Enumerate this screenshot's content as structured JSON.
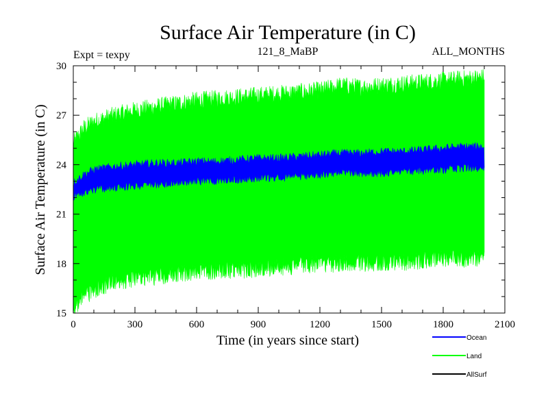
{
  "colors": {
    "ocean": "#0000ff",
    "land": "#00ff00",
    "allsurf": "#000000",
    "axis": "#000000"
  },
  "chart_data": {
    "type": "area",
    "title": "Surface Air Temperature (in C)",
    "expt_label": "Expt = texpy",
    "subtitle": "121_8_MaBP",
    "months_label": "ALL_MONTHS",
    "xlabel": "Time (in years since start)",
    "ylabel": "Surface Air Temperature (in C)",
    "xlim": [
      0,
      2100
    ],
    "ylim": [
      15,
      30
    ],
    "x_ticks": [
      "0",
      "300",
      "600",
      "900",
      "1200",
      "1500",
      "1800",
      "2100"
    ],
    "y_ticks": [
      "15",
      "18",
      "21",
      "24",
      "27",
      "30"
    ],
    "x_end": 2000,
    "series": [
      {
        "name": "Land",
        "color": "#00ff00",
        "x": [
          0,
          50,
          100,
          200,
          300,
          400,
          500,
          600,
          700,
          800,
          900,
          1000,
          1100,
          1200,
          1300,
          1400,
          1500,
          1600,
          1700,
          1800,
          1900,
          2000
        ],
        "upper": [
          25.3,
          26.2,
          26.6,
          27.0,
          27.3,
          27.5,
          27.7,
          27.9,
          28.0,
          28.1,
          28.2,
          28.3,
          28.4,
          28.5,
          28.8,
          28.7,
          28.8,
          28.9,
          29.0,
          29.1,
          29.2,
          29.3
        ],
        "lower": [
          15.3,
          16.0,
          16.4,
          16.9,
          17.1,
          17.2,
          17.4,
          17.5,
          17.6,
          17.6,
          17.7,
          17.8,
          17.9,
          18.0,
          18.0,
          18.0,
          18.1,
          18.1,
          18.2,
          18.3,
          18.3,
          18.4
        ]
      },
      {
        "name": "Ocean",
        "color": "#0000ff",
        "x": [
          0,
          50,
          100,
          200,
          300,
          400,
          500,
          600,
          700,
          800,
          900,
          1000,
          1100,
          1200,
          1300,
          1400,
          1500,
          1600,
          1700,
          1800,
          1900,
          2000
        ],
        "upper": [
          22.9,
          23.4,
          23.7,
          23.9,
          24.0,
          24.1,
          24.1,
          24.2,
          24.2,
          24.3,
          24.4,
          24.4,
          24.5,
          24.6,
          24.7,
          24.7,
          24.8,
          24.8,
          24.9,
          25.0,
          25.1,
          25.1
        ],
        "lower": [
          22.0,
          22.3,
          22.5,
          22.6,
          22.7,
          22.8,
          22.9,
          23.0,
          23.0,
          23.1,
          23.2,
          23.2,
          23.3,
          23.4,
          23.5,
          23.5,
          23.5,
          23.6,
          23.6,
          23.7,
          23.8,
          23.8
        ]
      },
      {
        "name": "AllSurf",
        "color": "#000000",
        "x": [],
        "upper": [],
        "lower": []
      }
    ],
    "legend": [
      {
        "label": "Ocean",
        "color": "#0000ff"
      },
      {
        "label": "Land",
        "color": "#00ff00"
      },
      {
        "label": "AllSurf",
        "color": "#000000"
      }
    ]
  }
}
